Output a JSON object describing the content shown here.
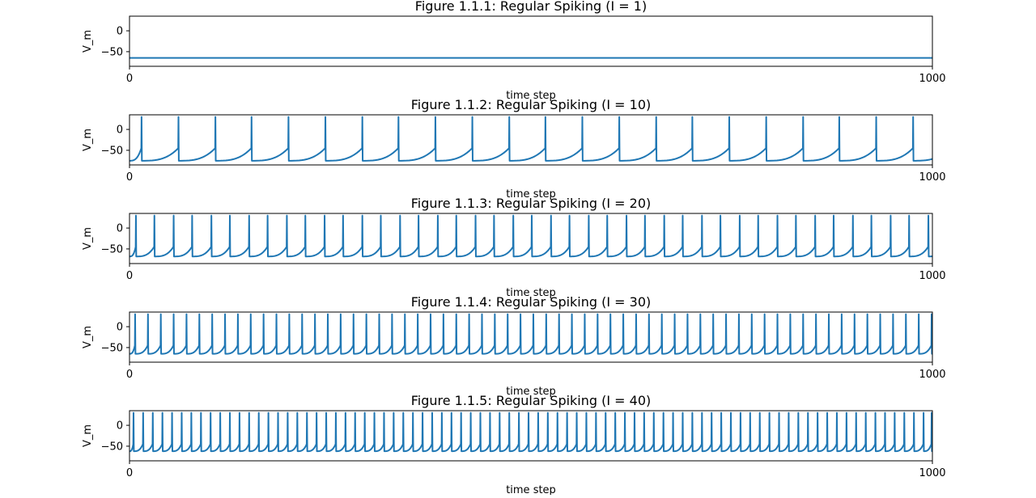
{
  "chart_data": [
    {
      "type": "line",
      "title": "Figure 1.1.1: Regular Spiking (I = 1)",
      "xlabel": "time step",
      "ylabel": "V_m",
      "xlim": [
        0,
        1000
      ],
      "ylim": [
        -85,
        35
      ],
      "xticks": [
        0,
        1000
      ],
      "yticks": [
        0,
        -50
      ],
      "xtick_labels": [
        "0",
        "1000"
      ],
      "ytick_labels": [
        "0",
        "−50"
      ],
      "series": [
        {
          "color": "#1f77b4",
          "resting_potential": -65,
          "spike_peak": 30,
          "reset": -75,
          "spike_times": []
        }
      ]
    },
    {
      "type": "line",
      "title": "Figure 1.1.2: Regular Spiking (I = 10)",
      "xlabel": "time step",
      "ylabel": "V_m",
      "xlim": [
        0,
        1000
      ],
      "ylim": [
        -85,
        35
      ],
      "xticks": [
        0,
        1000
      ],
      "yticks": [
        0,
        -50
      ],
      "xtick_labels": [
        "0",
        "1000"
      ],
      "ytick_labels": [
        "0",
        "−50"
      ],
      "series": [
        {
          "color": "#1f77b4",
          "resting_potential": -70,
          "spike_peak": 30,
          "reset": -75,
          "spike_times": [
            15,
            61,
            107,
            152,
            198,
            244,
            290,
            335,
            381,
            427,
            473,
            518,
            564,
            610,
            656,
            701,
            747,
            793,
            839,
            884,
            930,
            976
          ]
        }
      ]
    },
    {
      "type": "line",
      "title": "Figure 1.1.3: Regular Spiking (I = 20)",
      "xlabel": "time step",
      "ylabel": "V_m",
      "xlim": [
        0,
        1000
      ],
      "ylim": [
        -85,
        35
      ],
      "xticks": [
        0,
        1000
      ],
      "yticks": [
        0,
        -50
      ],
      "xtick_labels": [
        "0",
        "1000"
      ],
      "ytick_labels": [
        "0",
        "−50"
      ],
      "series": [
        {
          "color": "#1f77b4",
          "resting_potential": -70,
          "spike_peak": 30,
          "reset": -68,
          "spike_times": [
            8,
            31,
            55,
            78,
            102,
            125,
            149,
            172,
            196,
            219,
            243,
            266,
            290,
            313,
            337,
            360,
            384,
            407,
            431,
            454,
            478,
            501,
            525,
            548,
            572,
            595,
            619,
            642,
            666,
            689,
            713,
            736,
            760,
            783,
            807,
            830,
            854,
            877,
            901,
            924,
            948,
            971,
            995
          ]
        }
      ]
    },
    {
      "type": "line",
      "title": "Figure 1.1.4: Regular Spiking (I = 30)",
      "xlabel": "time step",
      "ylabel": "V_m",
      "xlim": [
        0,
        1000
      ],
      "ylim": [
        -85,
        35
      ],
      "xticks": [
        0,
        1000
      ],
      "yticks": [
        0,
        -50
      ],
      "xtick_labels": [
        "0",
        "1000"
      ],
      "ytick_labels": [
        "0",
        "−50"
      ],
      "series": [
        {
          "color": "#1f77b4",
          "resting_potential": -70,
          "spike_peak": 30,
          "reset": -65,
          "spike_times": [
            7,
            23,
            39,
            55,
            71,
            87,
            103,
            119,
            135,
            151,
            167,
            183,
            199,
            215,
            231,
            247,
            263,
            279,
            295,
            311,
            327,
            343,
            359,
            375,
            391,
            407,
            423,
            439,
            455,
            471,
            487,
            503,
            519,
            535,
            551,
            567,
            583,
            599,
            615,
            631,
            647,
            663,
            679,
            695,
            711,
            727,
            743,
            759,
            775,
            791,
            807,
            823,
            839,
            855,
            871,
            887,
            903,
            919,
            935,
            951,
            967,
            983,
            999
          ]
        }
      ]
    },
    {
      "type": "line",
      "title": "Figure 1.1.5: Regular Spiking (I = 40)",
      "xlabel": "time step",
      "ylabel": "V_m",
      "xlim": [
        0,
        1000
      ],
      "ylim": [
        -85,
        35
      ],
      "xticks": [
        0,
        1000
      ],
      "yticks": [
        0,
        -50
      ],
      "xtick_labels": [
        "0",
        "1000"
      ],
      "ytick_labels": [
        "0",
        "−50"
      ],
      "series": [
        {
          "color": "#1f77b4",
          "resting_potential": -70,
          "spike_peak": 30,
          "reset": -62,
          "spike_times": [
            5,
            17,
            29,
            41,
            53,
            65,
            77,
            89,
            101,
            113,
            125,
            137,
            149,
            161,
            173,
            185,
            197,
            209,
            221,
            233,
            245,
            257,
            269,
            281,
            293,
            305,
            317,
            329,
            341,
            353,
            365,
            377,
            389,
            401,
            413,
            425,
            437,
            449,
            461,
            473,
            485,
            497,
            509,
            521,
            533,
            545,
            557,
            569,
            581,
            593,
            605,
            617,
            629,
            641,
            653,
            665,
            677,
            689,
            701,
            713,
            725,
            737,
            749,
            761,
            773,
            785,
            797,
            809,
            821,
            833,
            845,
            857,
            869,
            881,
            893,
            905,
            917,
            929,
            941,
            953,
            965,
            977,
            989,
            999
          ]
        }
      ]
    }
  ]
}
